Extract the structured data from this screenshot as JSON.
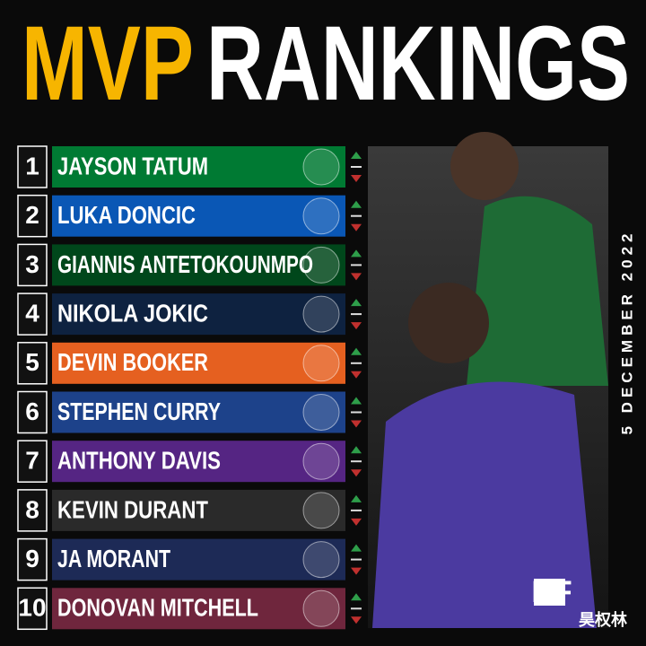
{
  "header": {
    "title_part1": "MVP",
    "title_part2": "RANKINGS"
  },
  "date": "5 DECEMBER 2022",
  "rankings": [
    {
      "rank": "1",
      "name": "JAYSON TATUM",
      "color": "#007a33"
    },
    {
      "rank": "2",
      "name": "LUKA DONCIC",
      "color": "#0a57b5"
    },
    {
      "rank": "3",
      "name": "GIANNIS ANTETOKOUNMPO",
      "color": "#00471b"
    },
    {
      "rank": "4",
      "name": "NIKOLA JOKIC",
      "color": "#0e2240"
    },
    {
      "rank": "5",
      "name": "DEVIN BOOKER",
      "color": "#e56020"
    },
    {
      "rank": "6",
      "name": "STEPHEN CURRY",
      "color": "#1d428a"
    },
    {
      "rank": "7",
      "name": "ANTHONY DAVIS",
      "color": "#552583"
    },
    {
      "rank": "8",
      "name": "KEVIN DURANT",
      "color": "#2a2a2a"
    },
    {
      "rank": "9",
      "name": "JA MORANT",
      "color": "#1d2a56"
    },
    {
      "rank": "10",
      "name": "DONOVAN MITCHELL",
      "color": "#6f263d"
    }
  ],
  "logo": "BF",
  "watermark": "昊权林"
}
